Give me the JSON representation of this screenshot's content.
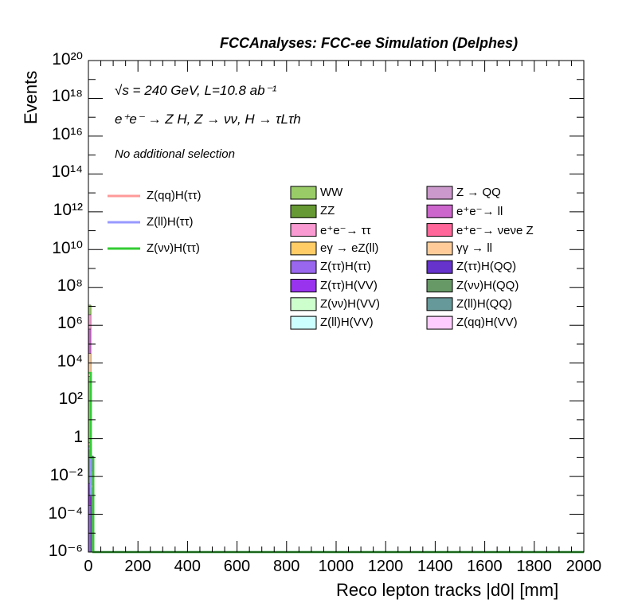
{
  "header": {
    "title": "FCCAnalyses: FCC-ee Simulation (Delphes)"
  },
  "info": {
    "energy_line": "√s = 240 GeV, L=10.8 ab⁻¹",
    "process_line": "e⁺e⁻ → Z H, Z → νν, H → τLτh",
    "selection_line": "No additional selection"
  },
  "axes": {
    "ylabel": "Events",
    "xlabel": "Reco lepton tracks |d0| [mm]",
    "xticks": [
      "0",
      "200",
      "400",
      "600",
      "800",
      "1000",
      "1200",
      "1400",
      "1600",
      "1800",
      "2000"
    ],
    "yticks": [
      "10⁻⁶",
      "10⁻⁴",
      "10⁻²",
      "1",
      "10²",
      "10⁴",
      "10⁶",
      "10⁸",
      "10¹⁰",
      "10¹²",
      "10¹⁴",
      "10¹⁶",
      "10¹⁸",
      "10²⁰"
    ]
  },
  "chart_data": {
    "type": "bar",
    "title": "FCCAnalyses: FCC-ee Simulation (Delphes)",
    "xlabel": "Reco lepton tracks |d0| [mm]",
    "ylabel": "Events",
    "xlim": [
      0,
      2000
    ],
    "ylim": [
      1e-06,
      1e+20
    ],
    "yscale": "log",
    "stacked": true,
    "legend_position": "top-right",
    "background": [
      {
        "name": "WW",
        "color": "#99cc66"
      },
      {
        "name": "ZZ",
        "color": "#669933"
      },
      {
        "name": "e⁺e⁻→ ττ",
        "color": "#f99ad2"
      },
      {
        "name": "eγ → eZ(ll)",
        "color": "#ffcc66"
      },
      {
        "name": "Z(ττ)H(ττ)",
        "color": "#9966ee"
      },
      {
        "name": "Z(ττ)H(VV)",
        "color": "#9933ee"
      },
      {
        "name": "Z(νν)H(VV)",
        "color": "#ccffcc"
      },
      {
        "name": "Z(ll)H(VV)",
        "color": "#ccffff"
      },
      {
        "name": "Z → QQ",
        "color": "#cc99cc"
      },
      {
        "name": "e⁺e⁻→ ll",
        "color": "#cc66cc"
      },
      {
        "name": "e⁺e⁻→ νeνe Z",
        "color": "#ff6699"
      },
      {
        "name": "γγ → ll",
        "color": "#ffcc99"
      },
      {
        "name": "Z(ττ)H(QQ)",
        "color": "#6633cc"
      },
      {
        "name": "Z(νν)H(QQ)",
        "color": "#669966"
      },
      {
        "name": "Z(ll)H(QQ)",
        "color": "#669999"
      },
      {
        "name": "Z(qq)H(VV)",
        "color": "#ffccff"
      }
    ],
    "signal": [
      {
        "name": "Z(qq)H(ττ)",
        "color": "#ff9999"
      },
      {
        "name": "Z(ll)H(ττ)",
        "color": "#9999ff"
      },
      {
        "name": "Z(νν)H(ττ)",
        "color": "#33cc33"
      }
    ],
    "bin_width": 10,
    "stack_bins": [
      {
        "x": 0,
        "segments": [
          {
            "name": "Z(ττ)H(ττ)",
            "value": 0.0003
          },
          {
            "name": "Z(ττ)H(VV)",
            "value": 0.004
          },
          {
            "name": "Z(νν)H(QQ)",
            "value": 0.6
          },
          {
            "name": "WW",
            "value": 2000
          },
          {
            "name": "γγ → ll",
            "value": 30000
          },
          {
            "name": "e⁺e⁻→ ll",
            "value": 600000
          },
          {
            "name": "e⁺e⁻→ ττ",
            "value": 3000000
          },
          {
            "name": "WW",
            "value": 8000000
          }
        ]
      },
      {
        "x": 10,
        "segments": [
          {
            "name": "Z(νν)H(QQ)",
            "value": 0.02
          },
          {
            "name": "Z(ττ)H(VV)",
            "value": 0.1
          }
        ]
      }
    ],
    "signal_values": {
      "x": [
        0,
        10,
        20,
        30
      ],
      "Z(qq)H(ττ)": [
        0.5,
        0.003,
        0,
        0
      ],
      "Z(ll)H(ττ)": [
        0.3,
        0.001,
        0,
        0
      ],
      "Z(νν)H(ττ)": [
        3000,
        0.1,
        0,
        0
      ]
    }
  }
}
